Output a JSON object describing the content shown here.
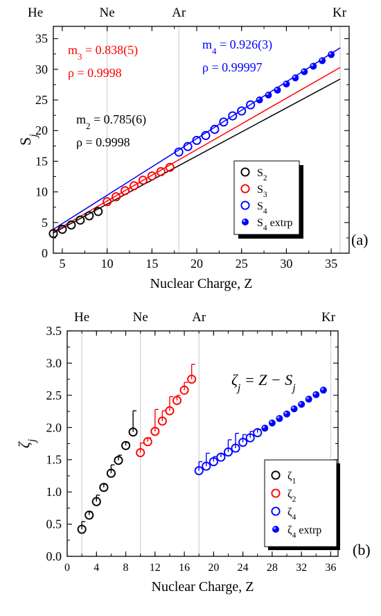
{
  "chart_data": [
    {
      "panel": "(a)",
      "type": "scatter",
      "xlabel": "Nuclear Charge, Z",
      "ylabel": "S",
      "ylabel_sub": "j",
      "xlim": [
        4,
        37
      ],
      "ylim": [
        0,
        37
      ],
      "xticks": [
        5,
        10,
        15,
        20,
        25,
        30,
        35
      ],
      "yticks": [
        0,
        5,
        10,
        15,
        20,
        25,
        30,
        35
      ],
      "elements": [
        {
          "label": "He",
          "z": 2
        },
        {
          "label": "Ne",
          "z": 10
        },
        {
          "label": "Ar",
          "z": 18
        },
        {
          "label": "Kr",
          "z": 36
        }
      ],
      "series": [
        {
          "name": "S",
          "sub": "2",
          "style": "open",
          "color": "#000000",
          "x": [
            4,
            5,
            6,
            7,
            8,
            9
          ],
          "y": [
            3.2,
            3.9,
            4.6,
            5.4,
            6.1,
            6.8
          ]
        },
        {
          "name": "S",
          "sub": "3",
          "style": "open",
          "color": "#ff0000",
          "x": [
            10,
            11,
            12,
            13,
            14,
            15,
            16,
            17
          ],
          "y": [
            8.4,
            9.2,
            10.2,
            11.0,
            11.9,
            12.6,
            13.3,
            14.0
          ]
        },
        {
          "name": "S",
          "sub": "4",
          "style": "open",
          "color": "#0000ff",
          "x": [
            18,
            19,
            20,
            21,
            22,
            23,
            24,
            25,
            26
          ],
          "y": [
            16.5,
            17.4,
            18.4,
            19.2,
            20.2,
            21.4,
            22.4,
            23.2,
            24.2
          ]
        },
        {
          "name": "S",
          "sub": "4",
          "suffix": " extrp",
          "style": "filled",
          "color": "#0000ff",
          "x": [
            27,
            28,
            29,
            30,
            31,
            32,
            33,
            34,
            35
          ],
          "y": [
            25.0,
            25.8,
            26.6,
            27.6,
            28.6,
            29.6,
            30.5,
            31.4,
            32.4
          ]
        }
      ],
      "fit_lines": [
        {
          "color": "#000000",
          "x": [
            4,
            36
          ],
          "y": [
            3.3,
            28.4
          ]
        },
        {
          "color": "#ff0000",
          "x": [
            4,
            36
          ],
          "y": [
            3.5,
            30.3
          ]
        },
        {
          "color": "#0000ff",
          "x": [
            4,
            36
          ],
          "y": [
            3.9,
            33.5
          ]
        }
      ],
      "annotations": [
        {
          "m_sub": "3",
          "m_value": " = 0.838(5)",
          "rho": "ρ = 0.9998",
          "color": "#ff0000"
        },
        {
          "m_sub": "4",
          "m_value": " = 0.926(3)",
          "rho": "ρ = 0.99997",
          "color": "#0000ff"
        },
        {
          "m_sub": "2",
          "m_value": " = 0.785(6)",
          "rho": "ρ = 0.9998",
          "color": "#000000"
        }
      ]
    },
    {
      "panel": "(b)",
      "type": "scatter",
      "xlabel": "Nuclear Charge, Z",
      "ylabel": "ζ",
      "ylabel_sub": "j",
      "xlim": [
        0,
        37
      ],
      "ylim": [
        0,
        3.5
      ],
      "xticks": [
        0,
        4,
        8,
        12,
        16,
        20,
        24,
        28,
        32,
        36
      ],
      "xtick_labels": [
        "0",
        "4",
        "8",
        "12",
        "16",
        "20",
        "24",
        "28",
        "32",
        "36"
      ],
      "yticks": [
        0.0,
        0.5,
        1.0,
        1.5,
        2.0,
        2.5,
        3.0,
        3.5
      ],
      "ytick_labels": [
        "0.0",
        "0.5",
        "1.0",
        "1.5",
        "2.0",
        "2.5",
        "3.0",
        "3.5"
      ],
      "elements": [
        {
          "label": "He",
          "z": 2
        },
        {
          "label": "Ne",
          "z": 10
        },
        {
          "label": "Ar",
          "z": 18
        },
        {
          "label": "Kr",
          "z": 36
        }
      ],
      "formula": {
        "lhs": "ζ",
        "lhs_sub": "j",
        "rhs": " = Z − S",
        "rhs_sub": "j"
      },
      "series": [
        {
          "name": "ζ",
          "sub": "1",
          "style": "open",
          "color": "#000000",
          "x": [
            2,
            3,
            4,
            5,
            6,
            7,
            8,
            9
          ],
          "y": [
            0.42,
            0.64,
            0.85,
            1.07,
            1.29,
            1.49,
            1.72,
            1.93
          ],
          "err": [
            0.12,
            0.05,
            0.1,
            0.05,
            0.13,
            0.08,
            0.05,
            0.33
          ]
        },
        {
          "name": "ζ",
          "sub": "2",
          "style": "open",
          "color": "#ff0000",
          "x": [
            10,
            11,
            12,
            13,
            14,
            15,
            16,
            17
          ],
          "y": [
            1.61,
            1.78,
            1.94,
            2.1,
            2.26,
            2.42,
            2.58,
            2.75
          ],
          "err": [
            0.15,
            0.06,
            0.34,
            0.16,
            0.22,
            0.08,
            0.12,
            0.23
          ]
        },
        {
          "name": "ζ",
          "sub": "4",
          "style": "open",
          "color": "#0000ff",
          "x": [
            18,
            19,
            20,
            21,
            22,
            23,
            24,
            25,
            26
          ],
          "y": [
            1.33,
            1.4,
            1.47,
            1.54,
            1.62,
            1.68,
            1.77,
            1.84,
            1.92
          ],
          "err": [
            0.14,
            0.2,
            0.08,
            0.05,
            0.19,
            0.23,
            0.12,
            0.1,
            0.05
          ]
        },
        {
          "name": "ζ",
          "sub": "4",
          "suffix": " extrp",
          "style": "filled",
          "color": "#0000ff",
          "x": [
            27,
            28,
            29,
            30,
            31,
            32,
            33,
            34,
            35
          ],
          "y": [
            1.99,
            2.07,
            2.14,
            2.21,
            2.29,
            2.36,
            2.44,
            2.51,
            2.58
          ],
          "err": []
        }
      ]
    }
  ]
}
